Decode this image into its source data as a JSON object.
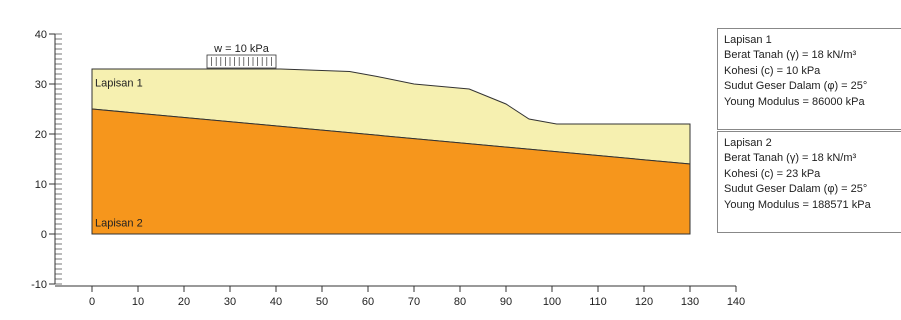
{
  "colors": {
    "layer1_fill": "#f6f0b0",
    "layer2_fill": "#f6961c",
    "outline": "#333333"
  },
  "axes": {
    "x_ticks": [
      "0",
      "10",
      "20",
      "30",
      "40",
      "50",
      "60",
      "70",
      "80",
      "90",
      "100",
      "110",
      "120",
      "130",
      "140"
    ],
    "y_ticks": [
      "40",
      "30",
      "20",
      "10",
      "0",
      "-10"
    ],
    "x_range": [
      0,
      140
    ],
    "y_range": [
      -10,
      40
    ]
  },
  "geometry_data": {
    "surface": [
      [
        0,
        33
      ],
      [
        41,
        33
      ],
      [
        56,
        32.5
      ],
      [
        62,
        31.5
      ],
      [
        70,
        30
      ],
      [
        82,
        29
      ],
      [
        90,
        26
      ],
      [
        95,
        23
      ],
      [
        101,
        22
      ],
      [
        130,
        22
      ]
    ],
    "interface": [
      [
        0,
        25
      ],
      [
        130,
        14
      ]
    ],
    "base_elevation": 0,
    "x_extent": [
      0,
      130
    ],
    "load_x_range": [
      25,
      40
    ]
  },
  "load": {
    "label": "w = 10 kPa"
  },
  "layers": [
    {
      "name": "Lapisan 1",
      "lines": [
        "Lapisan 1",
        "Berat Tanah (γ) = 18 kN/m³",
        "Kohesi (c) = 10 kPa",
        "Sudut Geser Dalam (φ) = 25°",
        "Young Modulus = 86000 kPa"
      ]
    },
    {
      "name": "Lapisan 2",
      "lines": [
        "Lapisan 2",
        "Berat Tanah (γ) = 18 kN/m³",
        "Kohesi (c) = 23 kPa",
        "Sudut Geser Dalam (φ) = 25°",
        "Young Modulus = 188571 kPa"
      ]
    }
  ]
}
